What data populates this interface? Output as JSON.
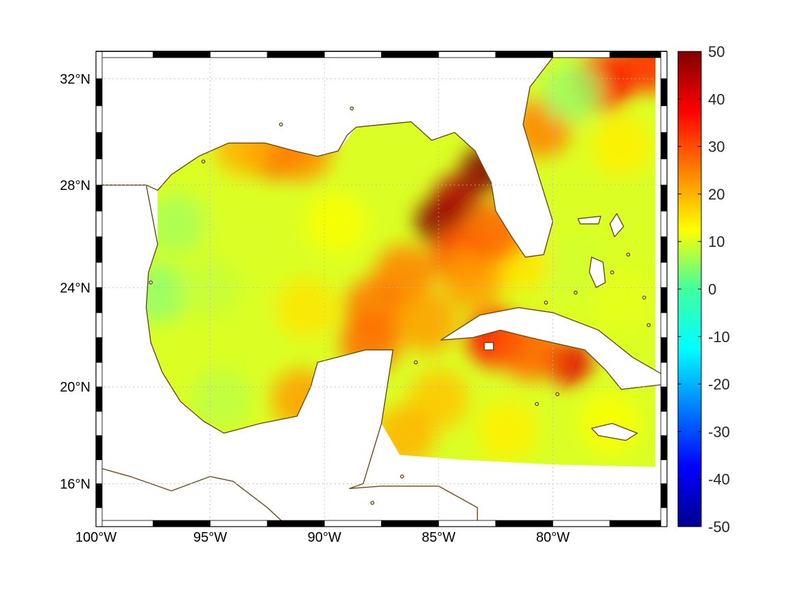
{
  "map": {
    "projection": "mercator",
    "lon_range": [
      -100,
      -75
    ],
    "lat_range": [
      14.2,
      33
    ],
    "lon_ticks": [
      {
        "value": -100,
        "label": "100°W"
      },
      {
        "value": -95,
        "label": "95°W"
      },
      {
        "value": -90,
        "label": "90°W"
      },
      {
        "value": -85,
        "label": "85°W"
      },
      {
        "value": -80,
        "label": "80°W"
      }
    ],
    "lat_ticks": [
      {
        "value": 16,
        "label": "16°N"
      },
      {
        "value": 20,
        "label": "20°N"
      },
      {
        "value": 24,
        "label": "24°N"
      },
      {
        "value": 28,
        "label": "28°N"
      },
      {
        "value": 32,
        "label": "32°N"
      }
    ],
    "grid": "dotted",
    "coastline_color": "#6b4a12",
    "colormap": "jet",
    "colorbar": {
      "min": -50,
      "max": 50,
      "ticks": [
        "50",
        "40",
        "30",
        "20",
        "10",
        "0",
        "-10",
        "-20",
        "-30",
        "-40",
        "-50"
      ]
    },
    "field_blobs": [
      {
        "lon": -85.0,
        "lat": 26.6,
        "value": 50
      },
      {
        "lon": -84.2,
        "lat": 27.5,
        "value": 46
      },
      {
        "lon": -83.0,
        "lat": 28.6,
        "value": 50
      },
      {
        "lon": -84.0,
        "lat": 25.3,
        "value": 30
      },
      {
        "lon": -86.5,
        "lat": 24.5,
        "value": 25
      },
      {
        "lon": -87.8,
        "lat": 23.2,
        "value": 26
      },
      {
        "lon": -88.0,
        "lat": 21.8,
        "value": 27
      },
      {
        "lon": -85.5,
        "lat": 22.6,
        "value": 22
      },
      {
        "lon": -82.5,
        "lat": 22.0,
        "value": 36
      },
      {
        "lon": -79.3,
        "lat": 21.0,
        "value": 40
      },
      {
        "lon": -81.0,
        "lat": 21.5,
        "value": 28
      },
      {
        "lon": -92.2,
        "lat": 29.4,
        "value": 30
      },
      {
        "lon": -91.0,
        "lat": 29.3,
        "value": 24
      },
      {
        "lon": -93.5,
        "lat": 29.5,
        "value": 20
      },
      {
        "lon": -89.5,
        "lat": 26.5,
        "value": 12
      },
      {
        "lon": -90.8,
        "lat": 23.2,
        "value": 15
      },
      {
        "lon": -91.0,
        "lat": 19.5,
        "value": 22
      },
      {
        "lon": -85.0,
        "lat": 19.5,
        "value": 18
      },
      {
        "lon": -86.5,
        "lat": 18.0,
        "value": 20
      },
      {
        "lon": -82.0,
        "lat": 18.2,
        "value": 14
      },
      {
        "lon": -77.5,
        "lat": 18.5,
        "value": 12
      },
      {
        "lon": -77.8,
        "lat": 31.9,
        "value": 38
      },
      {
        "lon": -75.8,
        "lat": 32.6,
        "value": 34
      },
      {
        "lon": -77.0,
        "lat": 29.5,
        "value": 14
      },
      {
        "lon": -80.5,
        "lat": 30.2,
        "value": 25
      },
      {
        "lon": -79.2,
        "lat": 31.5,
        "value": 3
      },
      {
        "lon": -96.5,
        "lat": 26.5,
        "value": 4
      },
      {
        "lon": -97.3,
        "lat": 23.8,
        "value": 2
      },
      {
        "lon": -94.5,
        "lat": 19.5,
        "value": 6
      },
      {
        "lon": -95.0,
        "lat": 24.0,
        "value": 7
      },
      {
        "lon": -93.0,
        "lat": 26.0,
        "value": 9
      },
      {
        "lon": -79.0,
        "lat": 24.8,
        "value": 8
      },
      {
        "lon": -77.0,
        "lat": 23.5,
        "value": 10
      },
      {
        "lon": -81.5,
        "lat": 25.0,
        "value": 15
      },
      {
        "lon": -83.5,
        "lat": 24.3,
        "value": 22
      },
      {
        "lon": -82.5,
        "lat": 26.2,
        "value": 28
      }
    ]
  }
}
